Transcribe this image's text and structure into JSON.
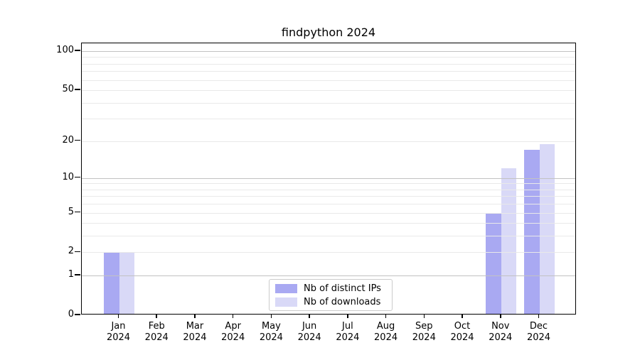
{
  "title": "findpython 2024",
  "chart_data": {
    "type": "bar",
    "title": "findpython 2024",
    "categories": [
      "Jan 2024",
      "Feb 2024",
      "Mar 2024",
      "Apr 2024",
      "May 2024",
      "Jun 2024",
      "Jul 2024",
      "Aug 2024",
      "Sep 2024",
      "Oct 2024",
      "Nov 2024",
      "Dec 2024"
    ],
    "series": [
      {
        "name": "Nb of distinct IPs",
        "color": "#a9a9f2",
        "values": [
          2,
          0,
          0,
          0,
          0,
          0,
          0,
          0,
          0,
          0,
          5,
          17
        ]
      },
      {
        "name": "Nb of downloads",
        "color": "#d9d9f7",
        "values": [
          2,
          0,
          0,
          0,
          0,
          0,
          0,
          0,
          0,
          0,
          12,
          19
        ]
      }
    ],
    "xlabel": "",
    "ylabel": "",
    "yscale": "log1p",
    "ylim": [
      0,
      114
    ],
    "y_tick_values": [
      0,
      1,
      2,
      5,
      10,
      20,
      50,
      100
    ],
    "major_gridlines": [
      1,
      10,
      100
    ],
    "minor_gridlines": [
      2,
      3,
      4,
      5,
      6,
      7,
      8,
      9,
      20,
      30,
      40,
      50,
      60,
      70,
      80,
      90
    ],
    "grid": "on",
    "legend_position": "lower center"
  },
  "colors": {
    "background": "#ffffff",
    "axis": "#000000",
    "major_grid": "#c2c2c2",
    "minor_grid": "#e9e9e9",
    "legend_border": "#cccccc",
    "bar_distinct_ips": "#a9a9f2",
    "bar_downloads": "#d9d9f7"
  }
}
